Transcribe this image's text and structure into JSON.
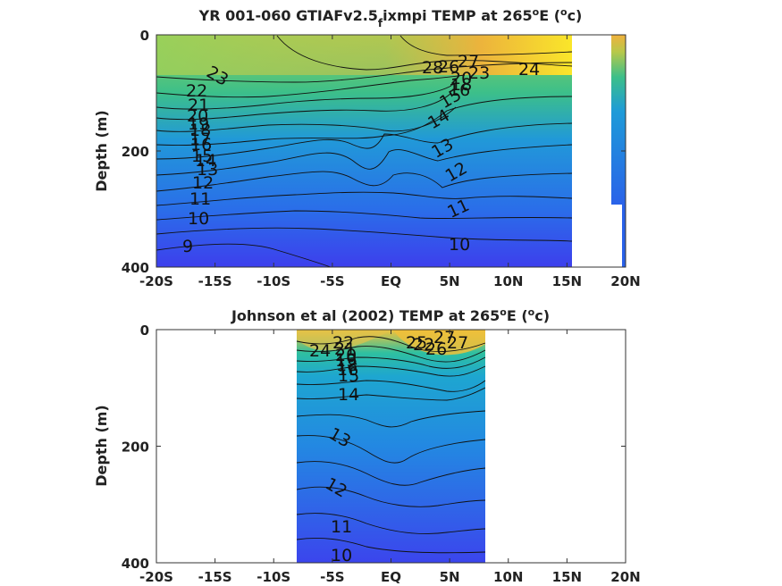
{
  "chart_data": [
    {
      "type": "contour",
      "title": "YR 001-060 GTIAFv2.5",
      "title_subscript": "f",
      "title_rest": "ixmpi TEMP at 265",
      "title_sup_deg": "o",
      "title_unit_pre": "E (",
      "title_unit_sup": "o",
      "title_unit_post": "c)",
      "ylabel": "Depth (m)",
      "xlim": [
        -20,
        20
      ],
      "ylim": [
        0,
        400
      ],
      "y_reversed": true,
      "xticks": [
        -20,
        -15,
        -10,
        -5,
        0,
        5,
        10,
        15,
        20
      ],
      "xticklabels": [
        "-20S",
        "-15S",
        "-10S",
        "-5S",
        "EQ",
        "5N",
        "10N",
        "15N",
        "20N"
      ],
      "yticks": [
        0,
        200,
        400
      ],
      "yticklabels": [
        "0",
        "200",
        "400"
      ],
      "data_extent_x": [
        -20,
        15.3
      ],
      "contour_levels": [
        {
          "level": 27,
          "label": "27"
        },
        {
          "level": 26,
          "label": "26"
        },
        {
          "level": 24,
          "label": "24"
        },
        {
          "level": 23,
          "label": "23"
        },
        {
          "level": 22,
          "label": "22"
        },
        {
          "level": 21,
          "label": "21"
        },
        {
          "level": 20,
          "label": "20"
        },
        {
          "level": 19,
          "label": "19"
        },
        {
          "level": 18,
          "label": "18"
        },
        {
          "level": 17,
          "label": "17"
        },
        {
          "level": 16,
          "label": "16"
        },
        {
          "level": 15,
          "label": "15"
        },
        {
          "level": 14,
          "label": "14"
        },
        {
          "level": 13,
          "label": "13"
        },
        {
          "level": 12,
          "label": "12"
        },
        {
          "level": 11,
          "label": "11"
        },
        {
          "level": 10,
          "label": "10"
        },
        {
          "level": 9,
          "label": "9"
        }
      ],
      "colormap": [
        "#3e3ded",
        "#2a6ee9",
        "#1e8fe0",
        "#25b3b0",
        "#5ac87a",
        "#a4c84a",
        "#e6b73a",
        "#fae62a"
      ],
      "clim": [
        8,
        28
      ]
    },
    {
      "type": "contour",
      "title": "Johnson et al (2002) TEMP at 265",
      "title_sup_deg": "o",
      "title_unit_pre": "E (",
      "title_unit_sup": "o",
      "title_unit_post": "c)",
      "ylabel": "Depth (m)",
      "xlim": [
        -20,
        20
      ],
      "ylim": [
        0,
        400
      ],
      "y_reversed": true,
      "xticks": [
        -20,
        -15,
        -10,
        -5,
        0,
        5,
        10,
        15,
        20
      ],
      "xticklabels": [
        "-20S",
        "-15S",
        "-10S",
        "-5S",
        "EQ",
        "5N",
        "10N",
        "15N",
        "20N"
      ],
      "yticks": [
        0,
        200,
        400
      ],
      "yticklabels": [
        "0",
        "200",
        "400"
      ],
      "data_extent_x": [
        -8,
        8
      ],
      "contour_levels": [
        {
          "level": 27,
          "label": "27"
        },
        {
          "level": 26,
          "label": "26"
        },
        {
          "level": 25,
          "label": "25"
        },
        {
          "level": 24,
          "label": "24"
        },
        {
          "level": 22,
          "label": "22"
        },
        {
          "level": 21,
          "label": "21"
        },
        {
          "level": 20,
          "label": "20"
        },
        {
          "level": 19,
          "label": "19"
        },
        {
          "level": 18,
          "label": "18"
        },
        {
          "level": 17,
          "label": "17"
        },
        {
          "level": 16,
          "label": "16"
        },
        {
          "level": 15,
          "label": "15"
        },
        {
          "level": 14,
          "label": "14"
        },
        {
          "level": 13,
          "label": "13"
        },
        {
          "level": 12,
          "label": "12"
        },
        {
          "level": 11,
          "label": "11"
        },
        {
          "level": 10,
          "label": "10"
        }
      ],
      "colormap": [
        "#3e3ded",
        "#2a6ee9",
        "#1e8fe0",
        "#25b3b0",
        "#5ac87a",
        "#a4c84a",
        "#e6b73a",
        "#fae62a"
      ],
      "clim": [
        8,
        28
      ]
    }
  ]
}
